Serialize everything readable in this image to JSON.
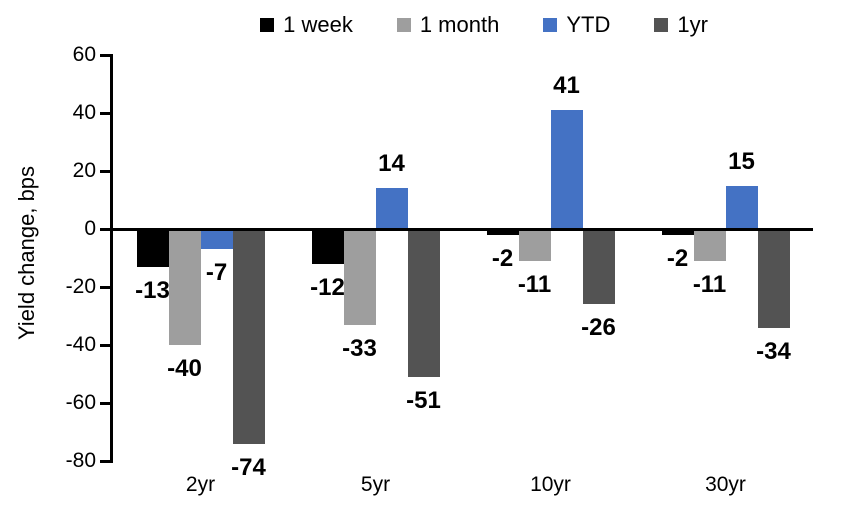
{
  "chart_data": {
    "type": "bar",
    "title": "",
    "ylabel": "Yield change, bps",
    "xlabel": "",
    "categories": [
      "2yr",
      "5yr",
      "10yr",
      "30yr"
    ],
    "series": [
      {
        "name": "1 week",
        "color": "#000000",
        "values": [
          -13,
          -12,
          -2,
          -2
        ]
      },
      {
        "name": "1 month",
        "color": "#9E9E9E",
        "values": [
          -40,
          -33,
          -11,
          -11
        ]
      },
      {
        "name": "YTD",
        "color": "#4472C4",
        "values": [
          -7,
          14,
          41,
          15
        ]
      },
      {
        "name": "1yr",
        "color": "#535353",
        "values": [
          -74,
          -51,
          -26,
          -34
        ]
      }
    ],
    "yticks": [
      60,
      40,
      20,
      0,
      -20,
      -40,
      -60,
      -80
    ],
    "ylim": [
      -80,
      60
    ],
    "grid": false,
    "legend_position": "top",
    "data_labels": "outside-end, bold",
    "axis_color": "#000000",
    "background_color": "#FFFFFF"
  }
}
